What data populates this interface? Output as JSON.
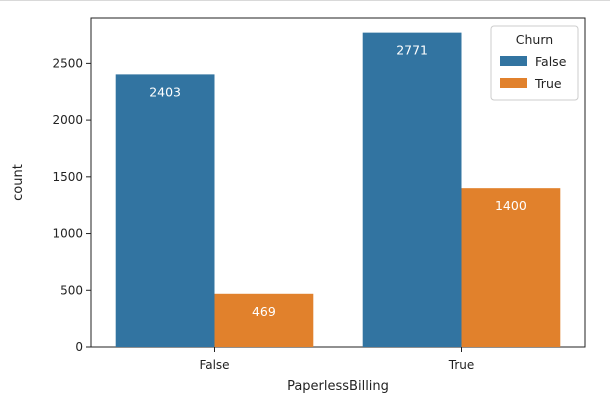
{
  "chart_data": {
    "type": "bar",
    "title": "",
    "xlabel": "PaperlessBilling",
    "ylabel": "count",
    "categories": [
      "False",
      "True"
    ],
    "ylim": [
      0,
      2900
    ],
    "yticks": [
      0,
      500,
      1000,
      1500,
      2000,
      2500
    ],
    "grid": false,
    "legend": {
      "title": "Churn",
      "placement": "top-right"
    },
    "series": [
      {
        "name": "False",
        "color": "#3274a1",
        "values": [
          2403,
          2771
        ]
      },
      {
        "name": "True",
        "color": "#e1812c",
        "values": [
          469,
          1400
        ]
      }
    ]
  }
}
